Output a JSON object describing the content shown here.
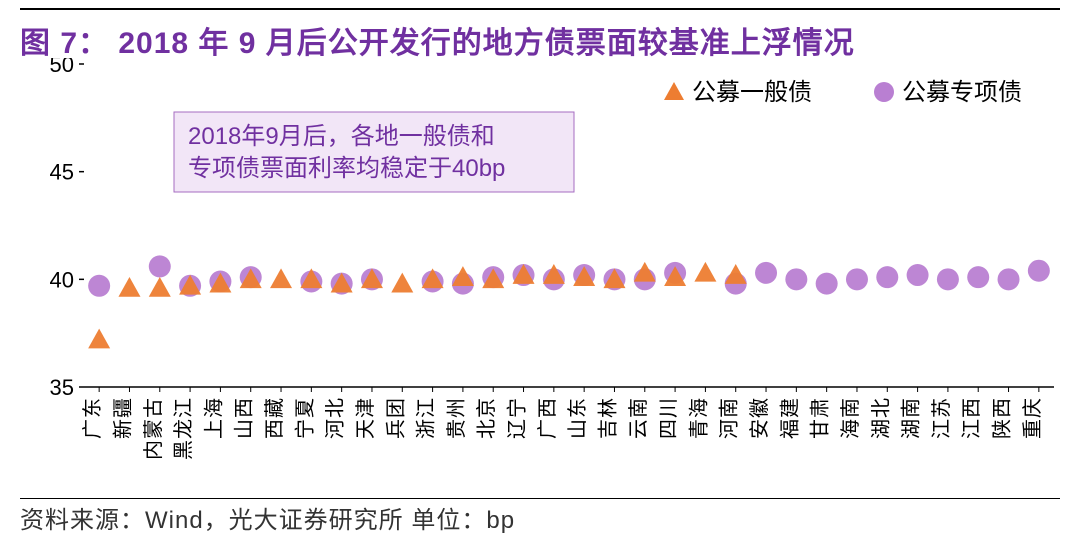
{
  "title": "图 7：   2018 年 9 月后公开发行的地方债票面较基准上浮情况",
  "source_prefix": "资料来源：",
  "source_wind": "Wind",
  "source_rest": "，光大证券研究所        单位：bp",
  "annotation_line1": "2018年9月后，各地一般债和",
  "annotation_line2": "专项债票面利率均稳定于40bp",
  "legend": {
    "series_a": "公募一般债",
    "series_b": "公募专项债"
  },
  "chart": {
    "type": "scatter",
    "ylim": [
      35,
      50
    ],
    "yticks": [
      35,
      40,
      45,
      50
    ],
    "ylabel_fontsize": 22,
    "xlabel_fontsize": 20,
    "categories": [
      "广东",
      "新疆",
      "内蒙古",
      "黑龙江",
      "上海",
      "山西",
      "西藏",
      "宁夏",
      "河北",
      "天津",
      "兵团",
      "浙江",
      "贵州",
      "北京",
      "辽宁",
      "广西",
      "山东",
      "吉林",
      "云南",
      "四川",
      "青海",
      "河南",
      "安徽",
      "福建",
      "甘肃",
      "海南",
      "湖北",
      "湖南",
      "江苏",
      "江西",
      "陕西",
      "重庆"
    ],
    "series_a": {
      "label": "公募一般债",
      "marker": "triangle",
      "color": "#ed7d31",
      "values": [
        37.2,
        39.6,
        39.6,
        39.7,
        39.8,
        40.0,
        40.0,
        40.0,
        39.8,
        40.0,
        39.8,
        40.0,
        40.1,
        40.0,
        40.2,
        40.2,
        40.1,
        40.0,
        40.3,
        40.1,
        40.3,
        40.2,
        null,
        null,
        null,
        null,
        null,
        null,
        null,
        null,
        null,
        null
      ]
    },
    "series_b": {
      "label": "公募专项债",
      "marker": "circle",
      "color": "#b97fd2",
      "values": [
        39.7,
        null,
        40.6,
        39.7,
        39.9,
        40.1,
        null,
        39.9,
        39.8,
        40.0,
        null,
        39.9,
        39.8,
        40.1,
        40.2,
        40.0,
        40.2,
        40.0,
        40.0,
        40.3,
        null,
        39.8,
        40.3,
        40.0,
        39.8,
        40.0,
        40.1,
        40.2,
        40.0,
        40.1,
        40.0,
        40.4
      ]
    },
    "annotation_box": {
      "fill": "#f2e6f7",
      "stroke": "#a66cc2",
      "text_color": "#7030a0",
      "fontsize": 24
    },
    "axis_color": "#000000",
    "background": "#ffffff",
    "marker_size": 11
  }
}
